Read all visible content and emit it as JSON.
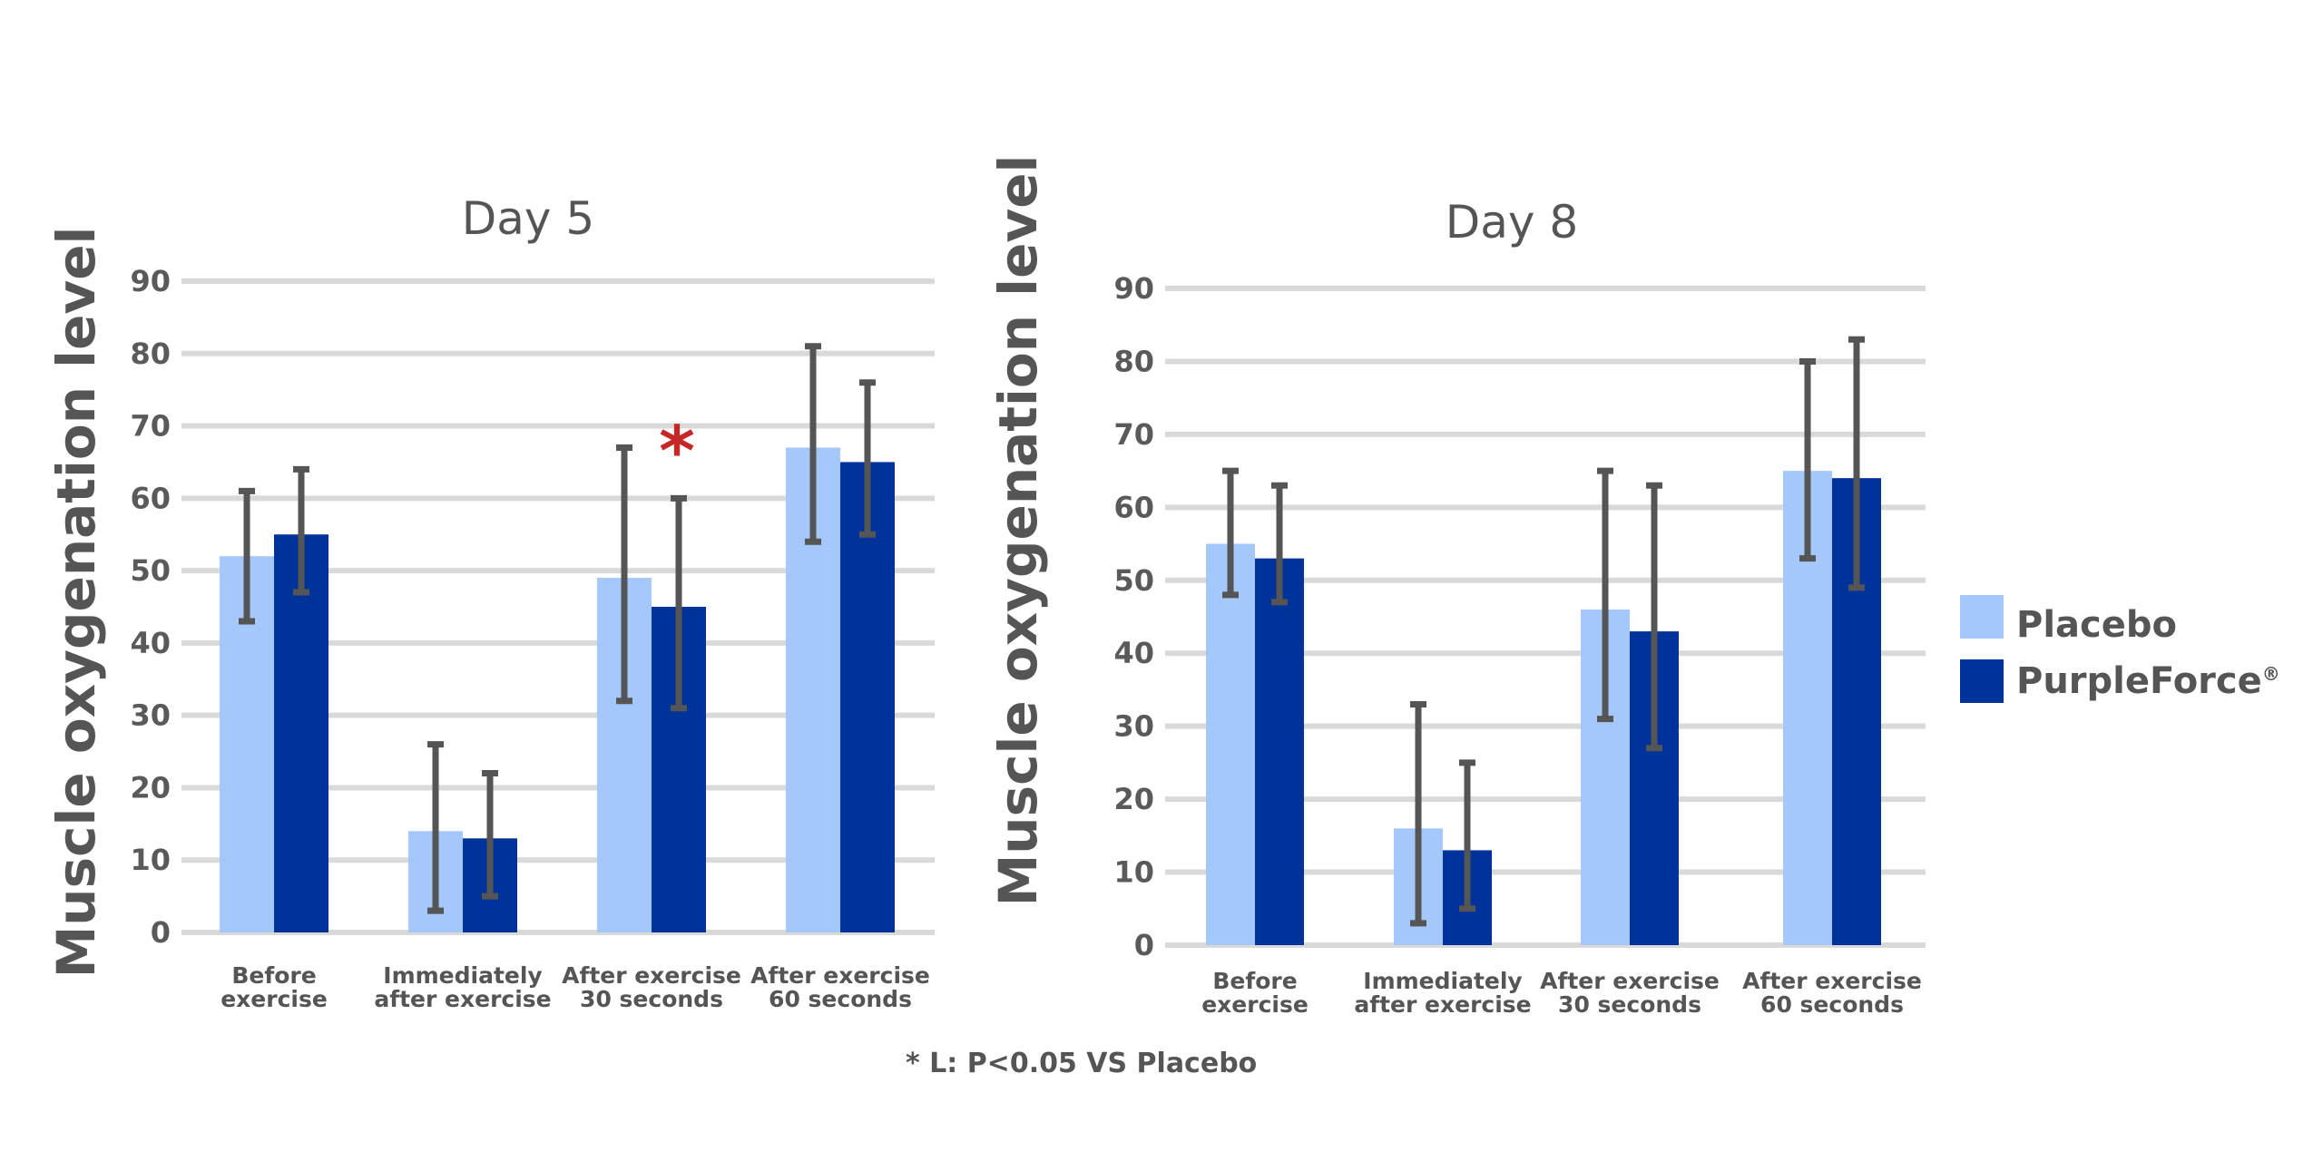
{
  "colors": {
    "placebo": "#a4c8fb",
    "purpleforce": "#00339a",
    "error_bar": "#555555",
    "grid": "#d9d9d9",
    "significance": "#c62828"
  },
  "legend": {
    "position": "right",
    "items": [
      {
        "label": "Placebo",
        "suffix": ""
      },
      {
        "label": "PurpleForce",
        "suffix": "®"
      }
    ]
  },
  "footnote": "* L: P<0.05 VS Placebo",
  "chart_data": [
    {
      "type": "bar",
      "title": "Day 5",
      "ylabel": "Muscle oxygenation level",
      "xlabel": "",
      "ylim": [
        0,
        90
      ],
      "yticks": [
        0,
        10,
        20,
        30,
        40,
        50,
        60,
        70,
        80,
        90
      ],
      "grid": true,
      "categories": [
        [
          "Before",
          "exercise"
        ],
        [
          "Immediately",
          "after exercise"
        ],
        [
          "After exercise",
          "30 seconds"
        ],
        [
          "After exercise",
          "60 seconds"
        ]
      ],
      "series": [
        {
          "name": "Placebo",
          "values": [
            52,
            14,
            49,
            67
          ],
          "error_low": [
            43,
            3,
            32,
            54
          ],
          "error_high": [
            61,
            26,
            67,
            81
          ]
        },
        {
          "name": "PurpleForce",
          "values": [
            55,
            13,
            45,
            65
          ],
          "error_low": [
            47,
            5,
            31,
            55
          ],
          "error_high": [
            64,
            22,
            60,
            76
          ]
        }
      ],
      "annotations": [
        {
          "text": "*",
          "category_index": 2,
          "value": 68
        }
      ]
    },
    {
      "type": "bar",
      "title": "Day 8",
      "ylabel": "Muscle oxygenation level",
      "xlabel": "",
      "ylim": [
        0,
        90
      ],
      "yticks": [
        0,
        10,
        20,
        30,
        40,
        50,
        60,
        70,
        80,
        90
      ],
      "grid": true,
      "categories": [
        [
          "Before",
          "exercise"
        ],
        [
          "Immediately",
          "after exercise"
        ],
        [
          "After exercise",
          "30 seconds"
        ],
        [
          "After exercise",
          "60 seconds"
        ]
      ],
      "series": [
        {
          "name": "Placebo",
          "values": [
            55,
            16,
            46,
            65
          ],
          "error_low": [
            48,
            3,
            31,
            53
          ],
          "error_high": [
            65,
            33,
            65,
            80
          ]
        },
        {
          "name": "PurpleForce",
          "values": [
            53,
            13,
            43,
            64
          ],
          "error_low": [
            47,
            5,
            27,
            49
          ],
          "error_high": [
            63,
            25,
            63,
            83
          ]
        }
      ],
      "annotations": []
    }
  ]
}
